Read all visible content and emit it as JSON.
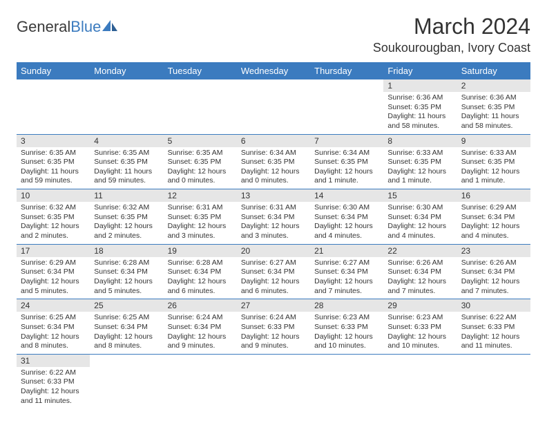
{
  "logo": {
    "text1": "General",
    "text2": "Blue"
  },
  "title": "March 2024",
  "location": "Soukourougban, Ivory Coast",
  "colors": {
    "header_bg": "#3b7bbf",
    "header_fg": "#ffffff",
    "daynum_bg": "#e6e6e6",
    "rule": "#3b7bbf"
  },
  "weekdays": [
    "Sunday",
    "Monday",
    "Tuesday",
    "Wednesday",
    "Thursday",
    "Friday",
    "Saturday"
  ],
  "weeks": [
    [
      null,
      null,
      null,
      null,
      null,
      {
        "n": "1",
        "sr": "6:36 AM",
        "ss": "6:35 PM",
        "dl": "11 hours and 58 minutes."
      },
      {
        "n": "2",
        "sr": "6:36 AM",
        "ss": "6:35 PM",
        "dl": "11 hours and 58 minutes."
      }
    ],
    [
      {
        "n": "3",
        "sr": "6:35 AM",
        "ss": "6:35 PM",
        "dl": "11 hours and 59 minutes."
      },
      {
        "n": "4",
        "sr": "6:35 AM",
        "ss": "6:35 PM",
        "dl": "11 hours and 59 minutes."
      },
      {
        "n": "5",
        "sr": "6:35 AM",
        "ss": "6:35 PM",
        "dl": "12 hours and 0 minutes."
      },
      {
        "n": "6",
        "sr": "6:34 AM",
        "ss": "6:35 PM",
        "dl": "12 hours and 0 minutes."
      },
      {
        "n": "7",
        "sr": "6:34 AM",
        "ss": "6:35 PM",
        "dl": "12 hours and 1 minute."
      },
      {
        "n": "8",
        "sr": "6:33 AM",
        "ss": "6:35 PM",
        "dl": "12 hours and 1 minute."
      },
      {
        "n": "9",
        "sr": "6:33 AM",
        "ss": "6:35 PM",
        "dl": "12 hours and 1 minute."
      }
    ],
    [
      {
        "n": "10",
        "sr": "6:32 AM",
        "ss": "6:35 PM",
        "dl": "12 hours and 2 minutes."
      },
      {
        "n": "11",
        "sr": "6:32 AM",
        "ss": "6:35 PM",
        "dl": "12 hours and 2 minutes."
      },
      {
        "n": "12",
        "sr": "6:31 AM",
        "ss": "6:35 PM",
        "dl": "12 hours and 3 minutes."
      },
      {
        "n": "13",
        "sr": "6:31 AM",
        "ss": "6:34 PM",
        "dl": "12 hours and 3 minutes."
      },
      {
        "n": "14",
        "sr": "6:30 AM",
        "ss": "6:34 PM",
        "dl": "12 hours and 4 minutes."
      },
      {
        "n": "15",
        "sr": "6:30 AM",
        "ss": "6:34 PM",
        "dl": "12 hours and 4 minutes."
      },
      {
        "n": "16",
        "sr": "6:29 AM",
        "ss": "6:34 PM",
        "dl": "12 hours and 4 minutes."
      }
    ],
    [
      {
        "n": "17",
        "sr": "6:29 AM",
        "ss": "6:34 PM",
        "dl": "12 hours and 5 minutes."
      },
      {
        "n": "18",
        "sr": "6:28 AM",
        "ss": "6:34 PM",
        "dl": "12 hours and 5 minutes."
      },
      {
        "n": "19",
        "sr": "6:28 AM",
        "ss": "6:34 PM",
        "dl": "12 hours and 6 minutes."
      },
      {
        "n": "20",
        "sr": "6:27 AM",
        "ss": "6:34 PM",
        "dl": "12 hours and 6 minutes."
      },
      {
        "n": "21",
        "sr": "6:27 AM",
        "ss": "6:34 PM",
        "dl": "12 hours and 7 minutes."
      },
      {
        "n": "22",
        "sr": "6:26 AM",
        "ss": "6:34 PM",
        "dl": "12 hours and 7 minutes."
      },
      {
        "n": "23",
        "sr": "6:26 AM",
        "ss": "6:34 PM",
        "dl": "12 hours and 7 minutes."
      }
    ],
    [
      {
        "n": "24",
        "sr": "6:25 AM",
        "ss": "6:34 PM",
        "dl": "12 hours and 8 minutes."
      },
      {
        "n": "25",
        "sr": "6:25 AM",
        "ss": "6:34 PM",
        "dl": "12 hours and 8 minutes."
      },
      {
        "n": "26",
        "sr": "6:24 AM",
        "ss": "6:34 PM",
        "dl": "12 hours and 9 minutes."
      },
      {
        "n": "27",
        "sr": "6:24 AM",
        "ss": "6:33 PM",
        "dl": "12 hours and 9 minutes."
      },
      {
        "n": "28",
        "sr": "6:23 AM",
        "ss": "6:33 PM",
        "dl": "12 hours and 10 minutes."
      },
      {
        "n": "29",
        "sr": "6:23 AM",
        "ss": "6:33 PM",
        "dl": "12 hours and 10 minutes."
      },
      {
        "n": "30",
        "sr": "6:22 AM",
        "ss": "6:33 PM",
        "dl": "12 hours and 11 minutes."
      }
    ],
    [
      {
        "n": "31",
        "sr": "6:22 AM",
        "ss": "6:33 PM",
        "dl": "12 hours and 11 minutes."
      },
      null,
      null,
      null,
      null,
      null,
      null
    ]
  ],
  "labels": {
    "sunrise": "Sunrise: ",
    "sunset": "Sunset: ",
    "daylight": "Daylight: "
  }
}
